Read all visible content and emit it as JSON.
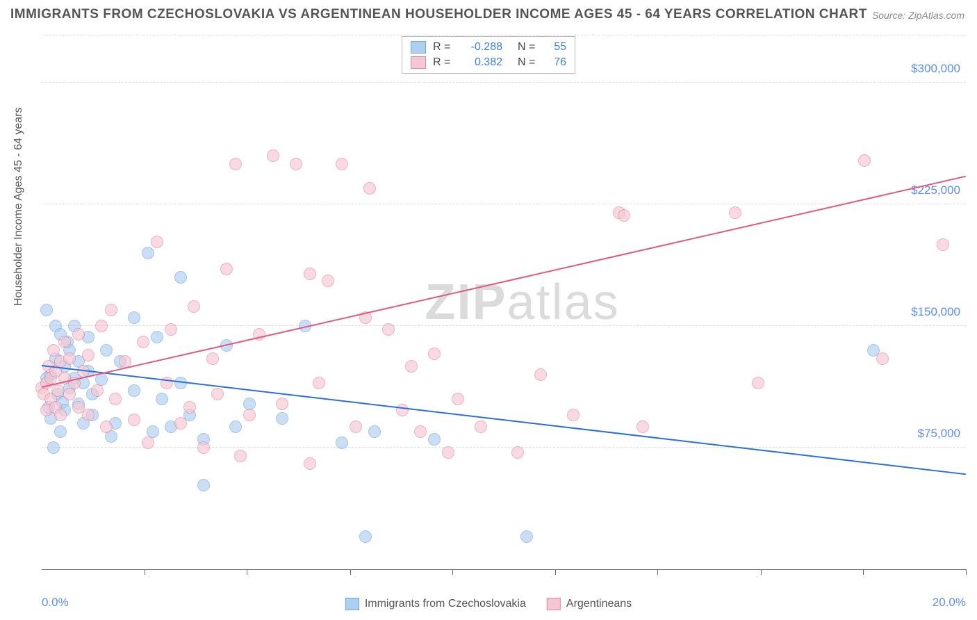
{
  "title": "IMMIGRANTS FROM CZECHOSLOVAKIA VS ARGENTINEAN HOUSEHOLDER INCOME AGES 45 - 64 YEARS CORRELATION CHART",
  "source": "Source: ZipAtlas.com",
  "watermark_a": "ZIP",
  "watermark_b": "atlas",
  "chart": {
    "type": "scatter",
    "xlim": [
      0,
      20
    ],
    "ylim": [
      0,
      330000
    ],
    "x_min_label": "0.0%",
    "x_max_label": "20.0%",
    "y_ticks": [
      75000,
      150000,
      225000,
      300000
    ],
    "y_tick_labels": [
      "$75,000",
      "$150,000",
      "$225,000",
      "$300,000"
    ],
    "x_tick_positions": [
      2.22,
      4.44,
      6.67,
      8.89,
      11.11,
      13.33,
      15.56,
      17.78,
      20.0
    ],
    "y_axis_title": "Householder Income Ages 45 - 64 years",
    "background_color": "#ffffff",
    "grid_color": "#dddddd",
    "axis_label_color": "#5b8def",
    "series": [
      {
        "name": "Immigrants from Czechoslovakia",
        "fill": "#aecff0",
        "stroke": "#6fa8dc",
        "trend_color": "#2a6fdb",
        "R": "-0.288",
        "N": "55",
        "trend": {
          "x1": 0,
          "y1": 125000,
          "x2": 20,
          "y2": 58000
        },
        "points": [
          [
            0.1,
            118000
          ],
          [
            0.1,
            160000
          ],
          [
            0.15,
            100000
          ],
          [
            0.2,
            120000
          ],
          [
            0.2,
            93000
          ],
          [
            0.25,
            75000
          ],
          [
            0.3,
            150000
          ],
          [
            0.3,
            130000
          ],
          [
            0.35,
            108000
          ],
          [
            0.4,
            145000
          ],
          [
            0.4,
            85000
          ],
          [
            0.45,
            103000
          ],
          [
            0.5,
            125000
          ],
          [
            0.5,
            98000
          ],
          [
            0.55,
            140000
          ],
          [
            0.6,
            112000
          ],
          [
            0.6,
            135000
          ],
          [
            0.7,
            118000
          ],
          [
            0.7,
            150000
          ],
          [
            0.8,
            102000
          ],
          [
            0.8,
            128000
          ],
          [
            0.9,
            90000
          ],
          [
            0.9,
            115000
          ],
          [
            1.0,
            143000
          ],
          [
            1.0,
            122000
          ],
          [
            1.1,
            95000
          ],
          [
            1.1,
            108000
          ],
          [
            1.3,
            117000
          ],
          [
            1.4,
            135000
          ],
          [
            1.5,
            82000
          ],
          [
            1.6,
            90000
          ],
          [
            1.7,
            128000
          ],
          [
            2.0,
            155000
          ],
          [
            2.0,
            110000
          ],
          [
            2.3,
            195000
          ],
          [
            2.4,
            85000
          ],
          [
            2.5,
            143000
          ],
          [
            2.6,
            105000
          ],
          [
            2.8,
            88000
          ],
          [
            3.0,
            180000
          ],
          [
            3.0,
            115000
          ],
          [
            3.2,
            95000
          ],
          [
            3.5,
            80000
          ],
          [
            3.5,
            52000
          ],
          [
            4.0,
            138000
          ],
          [
            4.2,
            88000
          ],
          [
            4.5,
            102000
          ],
          [
            5.2,
            93000
          ],
          [
            5.7,
            150000
          ],
          [
            6.5,
            78000
          ],
          [
            7.0,
            20000
          ],
          [
            7.2,
            85000
          ],
          [
            8.5,
            80000
          ],
          [
            10.5,
            20000
          ],
          [
            18.0,
            135000
          ]
        ]
      },
      {
        "name": "Argentineans",
        "fill": "#f6c7d3",
        "stroke": "#e08aa0",
        "trend_color": "#e05a7f",
        "R": "0.382",
        "N": "76",
        "trend": {
          "x1": 0,
          "y1": 112000,
          "x2": 20,
          "y2": 242000
        },
        "points": [
          [
            0.0,
            112000
          ],
          [
            0.05,
            108000
          ],
          [
            0.1,
            115000
          ],
          [
            0.1,
            98000
          ],
          [
            0.15,
            125000
          ],
          [
            0.2,
            105000
          ],
          [
            0.2,
            118000
          ],
          [
            0.25,
            135000
          ],
          [
            0.3,
            100000
          ],
          [
            0.3,
            122000
          ],
          [
            0.35,
            110000
          ],
          [
            0.4,
            128000
          ],
          [
            0.4,
            95000
          ],
          [
            0.5,
            118000
          ],
          [
            0.5,
            140000
          ],
          [
            0.6,
            108000
          ],
          [
            0.6,
            130000
          ],
          [
            0.7,
            115000
          ],
          [
            0.8,
            100000
          ],
          [
            0.8,
            145000
          ],
          [
            0.9,
            122000
          ],
          [
            1.0,
            95000
          ],
          [
            1.0,
            132000
          ],
          [
            1.2,
            110000
          ],
          [
            1.3,
            150000
          ],
          [
            1.4,
            88000
          ],
          [
            1.5,
            160000
          ],
          [
            1.6,
            105000
          ],
          [
            1.8,
            128000
          ],
          [
            2.0,
            92000
          ],
          [
            2.2,
            140000
          ],
          [
            2.3,
            78000
          ],
          [
            2.5,
            202000
          ],
          [
            2.7,
            115000
          ],
          [
            2.8,
            148000
          ],
          [
            3.0,
            90000
          ],
          [
            3.2,
            100000
          ],
          [
            3.3,
            162000
          ],
          [
            3.5,
            75000
          ],
          [
            3.7,
            130000
          ],
          [
            3.8,
            108000
          ],
          [
            4.0,
            185000
          ],
          [
            4.2,
            250000
          ],
          [
            4.3,
            70000
          ],
          [
            4.5,
            95000
          ],
          [
            4.7,
            145000
          ],
          [
            5.0,
            255000
          ],
          [
            5.2,
            102000
          ],
          [
            5.5,
            250000
          ],
          [
            5.8,
            182000
          ],
          [
            5.8,
            65000
          ],
          [
            6.0,
            115000
          ],
          [
            6.2,
            178000
          ],
          [
            6.5,
            250000
          ],
          [
            6.8,
            88000
          ],
          [
            7.0,
            155000
          ],
          [
            7.1,
            235000
          ],
          [
            7.5,
            148000
          ],
          [
            7.8,
            98000
          ],
          [
            8.0,
            125000
          ],
          [
            8.2,
            85000
          ],
          [
            8.5,
            133000
          ],
          [
            8.8,
            72000
          ],
          [
            9.0,
            105000
          ],
          [
            9.5,
            88000
          ],
          [
            10.3,
            72000
          ],
          [
            10.8,
            120000
          ],
          [
            11.5,
            95000
          ],
          [
            12.5,
            220000
          ],
          [
            12.6,
            218000
          ],
          [
            13.0,
            88000
          ],
          [
            15.0,
            220000
          ],
          [
            15.5,
            115000
          ],
          [
            17.8,
            252000
          ],
          [
            18.2,
            130000
          ],
          [
            19.5,
            200000
          ]
        ]
      }
    ],
    "marker_radius": 9,
    "marker_opacity": 0.65
  }
}
